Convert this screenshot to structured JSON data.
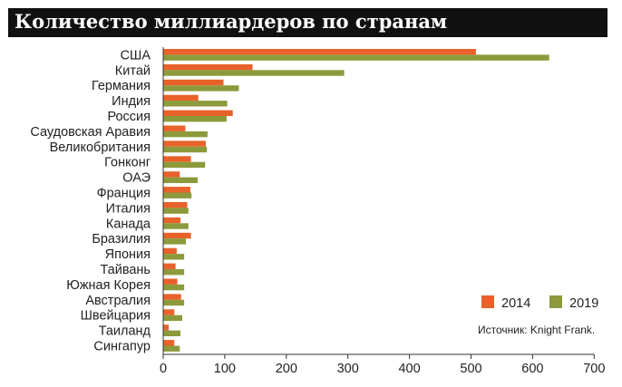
{
  "header": {
    "title": "Количество миллиардеров по странам"
  },
  "legend": {
    "placement": "bottom-right",
    "source": "Источник: Knight Frank."
  },
  "colors": {
    "2014": "#e8622a",
    "2019": "#8c9a3c",
    "axis": "#333333"
  },
  "chart_data": {
    "type": "bar",
    "orientation": "horizontal",
    "title": "Количество миллиардеров по странам",
    "categories": [
      "США",
      "Китай",
      "Германия",
      "Индия",
      "Россия",
      "Саудовская Аравия",
      "Великобритания",
      "Гонконг",
      "ОАЭ",
      "Франция",
      "Италия",
      "Канада",
      "Бразилия",
      "Япония",
      "Тайвань",
      "Южная Корея",
      "Австралия",
      "Швейцария",
      "Таиланд",
      "Сингапур"
    ],
    "series": [
      {
        "name": "2014",
        "values": [
          508,
          145,
          98,
          57,
          113,
          36,
          69,
          45,
          27,
          44,
          39,
          28,
          45,
          22,
          20,
          23,
          29,
          18,
          9,
          18
        ]
      },
      {
        "name": "2019",
        "values": [
          627,
          294,
          123,
          104,
          103,
          72,
          71,
          68,
          56,
          46,
          41,
          41,
          37,
          34,
          34,
          34,
          34,
          31,
          28,
          27
        ]
      }
    ],
    "xlim": [
      0,
      700
    ],
    "xticks": [
      0,
      100,
      200,
      300,
      400,
      500,
      600,
      700
    ],
    "xlabel": "",
    "ylabel": "",
    "grid": false
  }
}
